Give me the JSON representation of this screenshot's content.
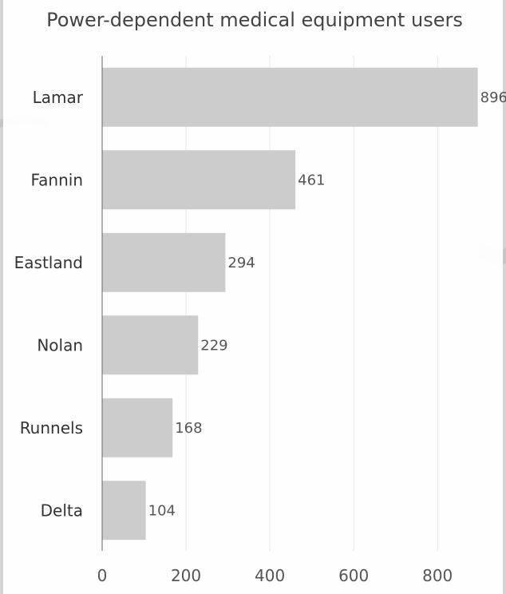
{
  "colors": {
    "bar": "#cccccc",
    "background": "#ffffff",
    "map": "#d4d4d4"
  },
  "chart_data": {
    "type": "bar",
    "orientation": "horizontal",
    "title": "Power-dependent medical equipment users",
    "categories": [
      "Lamar",
      "Fannin",
      "Eastland",
      "Nolan",
      "Runnels",
      "Delta"
    ],
    "values": [
      896,
      461,
      294,
      229,
      168,
      104
    ],
    "xlim": [
      0,
      950
    ],
    "xticks": [
      0,
      200,
      400,
      600,
      800
    ],
    "grid": true,
    "data_labels": true
  }
}
